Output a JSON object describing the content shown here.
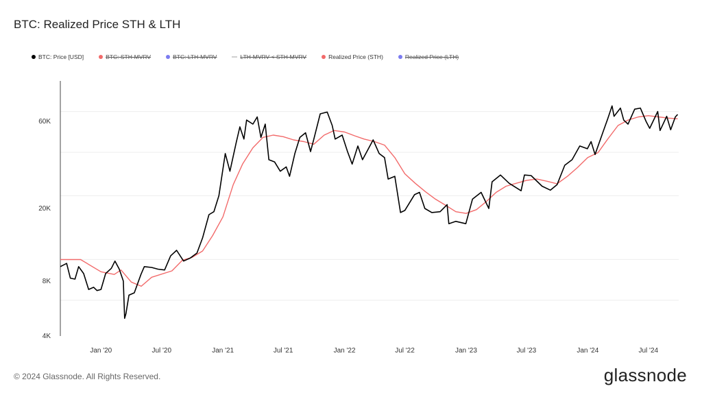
{
  "title": "BTC: Realized Price STH & LTH",
  "legend": [
    {
      "label": "BTC: Price [USD]",
      "color": "#000000",
      "marker": "dot",
      "active": true
    },
    {
      "label": "BTC: STH-MVRV",
      "color": "#f26a6a",
      "marker": "dot",
      "active": false
    },
    {
      "label": "BTC: LTH-MVRV",
      "color": "#7b7bf0",
      "marker": "dot",
      "active": false
    },
    {
      "label": "LTH-MVRV < STH-MVRV",
      "color": "#cfcfcf",
      "marker": "dash",
      "active": false
    },
    {
      "label": "Realized Price (STH)",
      "color": "#f26a6a",
      "marker": "dot",
      "active": true
    },
    {
      "label": "Realized Price (LTH)",
      "color": "#7b7bf0",
      "marker": "dot",
      "active": false
    }
  ],
  "footer": "© 2024 Glassnode. All Rights Reserved.",
  "brand": "glassnode",
  "chart_data": {
    "type": "line",
    "x_scale": "date",
    "y_scale": "log",
    "x_range": [
      "2019-09-01",
      "2024-09-30"
    ],
    "y_range": [
      4000,
      100000
    ],
    "x_ticks": [
      {
        "date": "2020-01-01",
        "label": "Jan '20"
      },
      {
        "date": "2020-07-01",
        "label": "Jul '20"
      },
      {
        "date": "2021-01-01",
        "label": "Jan '21"
      },
      {
        "date": "2021-07-01",
        "label": "Jul '21"
      },
      {
        "date": "2022-01-01",
        "label": "Jan '22"
      },
      {
        "date": "2022-07-01",
        "label": "Jul '22"
      },
      {
        "date": "2023-01-01",
        "label": "Jan '23"
      },
      {
        "date": "2023-07-01",
        "label": "Jul '23"
      },
      {
        "date": "2024-01-01",
        "label": "Jan '24"
      },
      {
        "date": "2024-07-01",
        "label": "Jul '24"
      }
    ],
    "y_ticks": [
      {
        "value": 4000,
        "label": "4K"
      },
      {
        "value": 8000,
        "label": "8K"
      },
      {
        "value": 20000,
        "label": "20K"
      },
      {
        "value": 60000,
        "label": "60K"
      }
    ],
    "grid": true,
    "legend_position": "top",
    "series": [
      {
        "name": "BTC: Price [USD]",
        "color": "#000000",
        "points": [
          [
            "2019-09-01",
            9600
          ],
          [
            "2019-09-20",
            10000
          ],
          [
            "2019-10-01",
            8300
          ],
          [
            "2019-10-15",
            8200
          ],
          [
            "2019-10-26",
            9600
          ],
          [
            "2019-11-10",
            8800
          ],
          [
            "2019-11-25",
            7200
          ],
          [
            "2019-12-10",
            7400
          ],
          [
            "2019-12-20",
            7100
          ],
          [
            "2020-01-01",
            7200
          ],
          [
            "2020-01-15",
            8800
          ],
          [
            "2020-02-01",
            9400
          ],
          [
            "2020-02-12",
            10300
          ],
          [
            "2020-02-25",
            9300
          ],
          [
            "2020-03-08",
            8000
          ],
          [
            "2020-03-12",
            5000
          ],
          [
            "2020-03-16",
            5300
          ],
          [
            "2020-03-25",
            6700
          ],
          [
            "2020-04-10",
            6900
          ],
          [
            "2020-04-30",
            8700
          ],
          [
            "2020-05-10",
            9600
          ],
          [
            "2020-06-01",
            9500
          ],
          [
            "2020-06-20",
            9300
          ],
          [
            "2020-07-10",
            9200
          ],
          [
            "2020-07-28",
            11000
          ],
          [
            "2020-08-15",
            11800
          ],
          [
            "2020-09-05",
            10300
          ],
          [
            "2020-09-25",
            10700
          ],
          [
            "2020-10-15",
            11400
          ],
          [
            "2020-11-01",
            13800
          ],
          [
            "2020-11-20",
            18500
          ],
          [
            "2020-12-05",
            19200
          ],
          [
            "2020-12-20",
            23500
          ],
          [
            "2021-01-08",
            40000
          ],
          [
            "2021-01-22",
            32000
          ],
          [
            "2021-02-10",
            46000
          ],
          [
            "2021-02-21",
            56000
          ],
          [
            "2021-03-05",
            48000
          ],
          [
            "2021-03-13",
            61000
          ],
          [
            "2021-04-01",
            58000
          ],
          [
            "2021-04-14",
            63500
          ],
          [
            "2021-04-25",
            49000
          ],
          [
            "2021-05-08",
            58000
          ],
          [
            "2021-05-19",
            37000
          ],
          [
            "2021-06-05",
            36000
          ],
          [
            "2021-06-22",
            32000
          ],
          [
            "2021-07-10",
            33800
          ],
          [
            "2021-07-20",
            30000
          ],
          [
            "2021-08-05",
            40000
          ],
          [
            "2021-08-20",
            49000
          ],
          [
            "2021-09-06",
            52000
          ],
          [
            "2021-09-21",
            41000
          ],
          [
            "2021-10-01",
            48000
          ],
          [
            "2021-10-20",
            66000
          ],
          [
            "2021-11-10",
            67500
          ],
          [
            "2021-11-25",
            57000
          ],
          [
            "2021-12-04",
            48000
          ],
          [
            "2021-12-25",
            50500
          ],
          [
            "2022-01-10",
            41000
          ],
          [
            "2022-01-24",
            35000
          ],
          [
            "2022-02-10",
            44000
          ],
          [
            "2022-02-24",
            37000
          ],
          [
            "2022-03-28",
            47500
          ],
          [
            "2022-04-15",
            40000
          ],
          [
            "2022-05-01",
            38000
          ],
          [
            "2022-05-12",
            29000
          ],
          [
            "2022-06-01",
            30000
          ],
          [
            "2022-06-18",
            19000
          ],
          [
            "2022-07-01",
            19500
          ],
          [
            "2022-07-30",
            23800
          ],
          [
            "2022-08-14",
            24500
          ],
          [
            "2022-08-30",
            20000
          ],
          [
            "2022-09-20",
            19000
          ],
          [
            "2022-10-15",
            19200
          ],
          [
            "2022-11-05",
            21000
          ],
          [
            "2022-11-10",
            16500
          ],
          [
            "2022-12-01",
            17000
          ],
          [
            "2022-12-31",
            16500
          ],
          [
            "2023-01-20",
            22500
          ],
          [
            "2023-02-15",
            24500
          ],
          [
            "2023-03-10",
            20000
          ],
          [
            "2023-03-20",
            28000
          ],
          [
            "2023-04-14",
            30500
          ],
          [
            "2023-05-10",
            27500
          ],
          [
            "2023-06-15",
            25000
          ],
          [
            "2023-06-25",
            30500
          ],
          [
            "2023-07-15",
            30300
          ],
          [
            "2023-08-17",
            26500
          ],
          [
            "2023-09-11",
            25200
          ],
          [
            "2023-10-01",
            27000
          ],
          [
            "2023-10-24",
            34500
          ],
          [
            "2023-11-15",
            37000
          ],
          [
            "2023-12-08",
            44000
          ],
          [
            "2023-12-31",
            42500
          ],
          [
            "2024-01-11",
            46500
          ],
          [
            "2024-01-23",
            39500
          ],
          [
            "2024-02-15",
            52000
          ],
          [
            "2024-03-01",
            62000
          ],
          [
            "2024-03-14",
            73000
          ],
          [
            "2024-03-20",
            64000
          ],
          [
            "2024-04-08",
            71000
          ],
          [
            "2024-04-18",
            61000
          ],
          [
            "2024-05-01",
            58000
          ],
          [
            "2024-05-21",
            70000
          ],
          [
            "2024-06-07",
            71000
          ],
          [
            "2024-06-24",
            60000
          ],
          [
            "2024-07-05",
            55000
          ],
          [
            "2024-07-29",
            68000
          ],
          [
            "2024-08-05",
            53500
          ],
          [
            "2024-08-25",
            64000
          ],
          [
            "2024-09-06",
            54000
          ],
          [
            "2024-09-20",
            63500
          ],
          [
            "2024-09-27",
            65500
          ]
        ]
      },
      {
        "name": "Realized Price (STH)",
        "color": "#f26a6a",
        "points": [
          [
            "2019-09-01",
            10500
          ],
          [
            "2019-11-01",
            10500
          ],
          [
            "2020-01-01",
            9000
          ],
          [
            "2020-02-10",
            8700
          ],
          [
            "2020-03-01",
            9200
          ],
          [
            "2020-04-01",
            7900
          ],
          [
            "2020-05-01",
            7500
          ],
          [
            "2020-06-01",
            8400
          ],
          [
            "2020-08-01",
            9100
          ],
          [
            "2020-09-01",
            10400
          ],
          [
            "2020-10-01",
            10800
          ],
          [
            "2020-11-01",
            11700
          ],
          [
            "2020-12-01",
            14200
          ],
          [
            "2021-01-01",
            18000
          ],
          [
            "2021-02-01",
            27000
          ],
          [
            "2021-03-01",
            35000
          ],
          [
            "2021-04-01",
            43000
          ],
          [
            "2021-05-01",
            49000
          ],
          [
            "2021-06-01",
            50500
          ],
          [
            "2021-07-01",
            49500
          ],
          [
            "2021-08-01",
            47500
          ],
          [
            "2021-09-01",
            46500
          ],
          [
            "2021-10-01",
            45000
          ],
          [
            "2021-11-01",
            50500
          ],
          [
            "2021-12-01",
            53500
          ],
          [
            "2022-01-01",
            52500
          ],
          [
            "2022-02-01",
            50000
          ],
          [
            "2022-03-01",
            48000
          ],
          [
            "2022-04-01",
            46500
          ],
          [
            "2022-05-01",
            44500
          ],
          [
            "2022-06-01",
            38000
          ],
          [
            "2022-07-01",
            31000
          ],
          [
            "2022-08-01",
            27500
          ],
          [
            "2022-09-01",
            24700
          ],
          [
            "2022-10-01",
            22500
          ],
          [
            "2022-11-01",
            20800
          ],
          [
            "2022-12-01",
            19200
          ],
          [
            "2023-01-01",
            18800
          ],
          [
            "2023-02-01",
            19700
          ],
          [
            "2023-03-01",
            21700
          ],
          [
            "2023-04-01",
            24500
          ],
          [
            "2023-05-01",
            26500
          ],
          [
            "2023-06-01",
            27500
          ],
          [
            "2023-07-01",
            28500
          ],
          [
            "2023-08-01",
            29000
          ],
          [
            "2023-09-01",
            28200
          ],
          [
            "2023-10-01",
            27300
          ],
          [
            "2023-11-01",
            30000
          ],
          [
            "2023-12-01",
            33500
          ],
          [
            "2024-01-01",
            38000
          ],
          [
            "2024-02-01",
            40500
          ],
          [
            "2024-03-01",
            48000
          ],
          [
            "2024-04-01",
            57000
          ],
          [
            "2024-05-01",
            61000
          ],
          [
            "2024-06-01",
            63500
          ],
          [
            "2024-07-01",
            64500
          ],
          [
            "2024-08-01",
            63500
          ],
          [
            "2024-09-01",
            62500
          ],
          [
            "2024-09-27",
            62000
          ]
        ]
      }
    ]
  }
}
